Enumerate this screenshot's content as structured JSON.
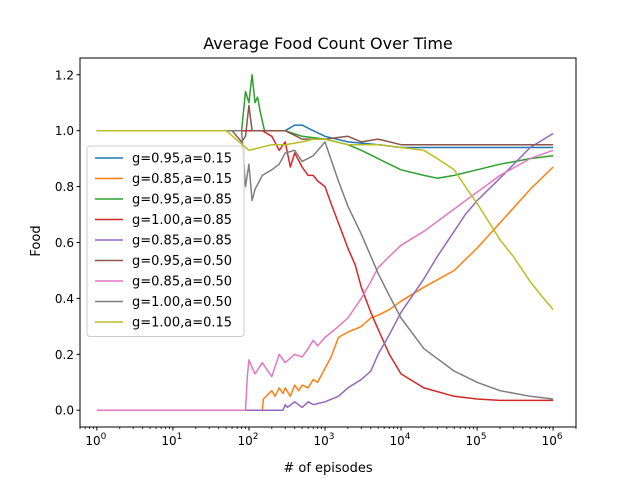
{
  "chart_data": {
    "type": "line",
    "title": "Average Food Count Over Time",
    "xlabel": "# of episodes",
    "ylabel": "Food",
    "x_scale": "log",
    "xlim": [
      0.6,
      2000000
    ],
    "ylim": [
      -0.06,
      1.26
    ],
    "grid": false,
    "legend_position": "center-left",
    "x_ticks": [
      {
        "value": 1,
        "base": "10",
        "exp": "0"
      },
      {
        "value": 10,
        "base": "10",
        "exp": "1"
      },
      {
        "value": 100,
        "base": "10",
        "exp": "2"
      },
      {
        "value": 1000,
        "base": "10",
        "exp": "3"
      },
      {
        "value": 10000,
        "base": "10",
        "exp": "4"
      },
      {
        "value": 100000,
        "base": "10",
        "exp": "5"
      },
      {
        "value": 1000000,
        "base": "10",
        "exp": "6"
      }
    ],
    "y_ticks": [
      {
        "value": 0.0,
        "label": "0.0"
      },
      {
        "value": 0.2,
        "label": "0.2"
      },
      {
        "value": 0.4,
        "label": "0.4"
      },
      {
        "value": 0.6,
        "label": "0.6"
      },
      {
        "value": 0.8,
        "label": "0.8"
      },
      {
        "value": 1.0,
        "label": "1.0"
      },
      {
        "value": 1.2,
        "label": "1.2"
      }
    ],
    "series": [
      {
        "name": "g=0.95,a=0.15",
        "color": "#1f77b4",
        "x": [
          1,
          10,
          100,
          200,
          250,
          300,
          400,
          500,
          700,
          1000,
          2000,
          5000,
          10000,
          100000,
          1000000
        ],
        "y": [
          1.0,
          1.0,
          1.0,
          1.0,
          1.0,
          1.0,
          1.02,
          1.02,
          1.0,
          0.98,
          0.96,
          0.95,
          0.94,
          0.94,
          0.94
        ]
      },
      {
        "name": "g=0.85,a=0.15",
        "color": "#ff7f0e",
        "x": [
          1,
          150,
          155,
          200,
          220,
          250,
          280,
          300,
          350,
          400,
          450,
          500,
          600,
          700,
          800,
          1000,
          1200,
          1500,
          2000,
          2500,
          3000,
          4000,
          5000,
          7000,
          10000,
          20000,
          50000,
          100000,
          200000,
          500000,
          1000000
        ],
        "y": [
          0.0,
          0.0,
          0.04,
          0.07,
          0.05,
          0.08,
          0.06,
          0.08,
          0.05,
          0.09,
          0.07,
          0.09,
          0.08,
          0.11,
          0.1,
          0.15,
          0.19,
          0.26,
          0.28,
          0.29,
          0.3,
          0.33,
          0.34,
          0.36,
          0.39,
          0.44,
          0.5,
          0.58,
          0.67,
          0.79,
          0.87
        ]
      },
      {
        "name": "g=0.95,a=0.85",
        "color": "#2ca02c",
        "x": [
          1,
          50,
          80,
          90,
          100,
          110,
          120,
          130,
          140,
          160,
          180,
          200,
          300,
          500,
          1000,
          2000,
          3000,
          5000,
          7000,
          10000,
          20000,
          30000,
          50000,
          100000,
          200000,
          500000,
          1000000
        ],
        "y": [
          1.0,
          1.0,
          1.0,
          1.14,
          1.1,
          1.2,
          1.1,
          1.12,
          1.07,
          1.0,
          1.0,
          1.0,
          1.0,
          0.98,
          0.97,
          0.95,
          0.93,
          0.9,
          0.88,
          0.86,
          0.84,
          0.83,
          0.84,
          0.86,
          0.88,
          0.9,
          0.91
        ]
      },
      {
        "name": "g=1.00,a=0.85",
        "color": "#d62728",
        "x": [
          1,
          100,
          150,
          200,
          250,
          300,
          350,
          400,
          500,
          600,
          700,
          800,
          1000,
          1200,
          1500,
          2000,
          2500,
          3000,
          4000,
          5000,
          7000,
          10000,
          20000,
          50000,
          100000,
          200000,
          500000,
          1000000
        ],
        "y": [
          1.0,
          1.0,
          1.0,
          0.98,
          0.93,
          0.96,
          0.87,
          0.92,
          0.87,
          0.84,
          0.84,
          0.82,
          0.8,
          0.74,
          0.67,
          0.58,
          0.52,
          0.44,
          0.35,
          0.29,
          0.2,
          0.13,
          0.08,
          0.05,
          0.04,
          0.035,
          0.035,
          0.035
        ]
      },
      {
        "name": "g=0.85,a=0.85",
        "color": "#9467bd",
        "x": [
          1,
          150,
          280,
          300,
          320,
          400,
          500,
          600,
          700,
          1000,
          1500,
          2000,
          3000,
          4000,
          5000,
          7000,
          10000,
          15000,
          20000,
          30000,
          50000,
          70000,
          100000,
          200000,
          500000,
          1000000
        ],
        "y": [
          0.0,
          0.0,
          0.0,
          0.02,
          0.01,
          0.03,
          0.01,
          0.03,
          0.02,
          0.03,
          0.05,
          0.08,
          0.11,
          0.14,
          0.2,
          0.27,
          0.35,
          0.42,
          0.47,
          0.55,
          0.64,
          0.7,
          0.75,
          0.83,
          0.94,
          0.99
        ]
      },
      {
        "name": "g=0.95,a=0.50",
        "color": "#8c564b",
        "x": [
          1,
          60,
          80,
          90,
          100,
          110,
          120,
          140,
          160,
          200,
          300,
          500,
          1000,
          2000,
          3000,
          5000,
          10000,
          100000,
          1000000
        ],
        "y": [
          1.0,
          1.0,
          0.96,
          0.98,
          1.09,
          1.0,
          1.0,
          1.0,
          1.0,
          1.0,
          1.0,
          0.97,
          0.97,
          0.98,
          0.96,
          0.97,
          0.95,
          0.95,
          0.95
        ]
      },
      {
        "name": "g=0.85,a=0.50",
        "color": "#e377c2",
        "x": [
          1,
          90,
          95,
          100,
          120,
          150,
          200,
          250,
          300,
          400,
          500,
          600,
          700,
          800,
          1000,
          1500,
          2000,
          3000,
          4000,
          5000,
          7000,
          10000,
          20000,
          50000,
          100000,
          200000,
          500000,
          1000000
        ],
        "y": [
          0.0,
          0.0,
          0.12,
          0.18,
          0.13,
          0.17,
          0.12,
          0.2,
          0.17,
          0.2,
          0.19,
          0.22,
          0.25,
          0.23,
          0.26,
          0.3,
          0.33,
          0.4,
          0.46,
          0.51,
          0.55,
          0.59,
          0.64,
          0.72,
          0.78,
          0.84,
          0.9,
          0.93
        ]
      },
      {
        "name": "g=1.00,a=0.50",
        "color": "#7f7f7f",
        "x": [
          1,
          80,
          90,
          100,
          110,
          120,
          150,
          200,
          250,
          300,
          400,
          500,
          700,
          1000,
          1500,
          2000,
          3000,
          5000,
          7000,
          10000,
          20000,
          50000,
          100000,
          200000,
          500000,
          1000000
        ],
        "y": [
          1.0,
          1.0,
          0.8,
          0.88,
          0.75,
          0.79,
          0.84,
          0.86,
          0.88,
          0.92,
          0.93,
          0.89,
          0.91,
          0.96,
          0.82,
          0.73,
          0.63,
          0.49,
          0.41,
          0.33,
          0.22,
          0.14,
          0.1,
          0.07,
          0.05,
          0.04
        ]
      },
      {
        "name": "g=1.00,a=0.15",
        "color": "#bcbd22",
        "x": [
          1,
          50,
          100,
          200,
          300,
          500,
          700,
          1000,
          2000,
          5000,
          10000,
          20000,
          30000,
          50000,
          70000,
          100000,
          200000,
          300000,
          500000,
          700000,
          1000000
        ],
        "y": [
          1.0,
          1.0,
          0.93,
          0.95,
          0.95,
          0.96,
          0.97,
          0.97,
          0.95,
          0.95,
          0.94,
          0.93,
          0.9,
          0.86,
          0.8,
          0.74,
          0.61,
          0.55,
          0.46,
          0.41,
          0.36
        ]
      }
    ]
  }
}
